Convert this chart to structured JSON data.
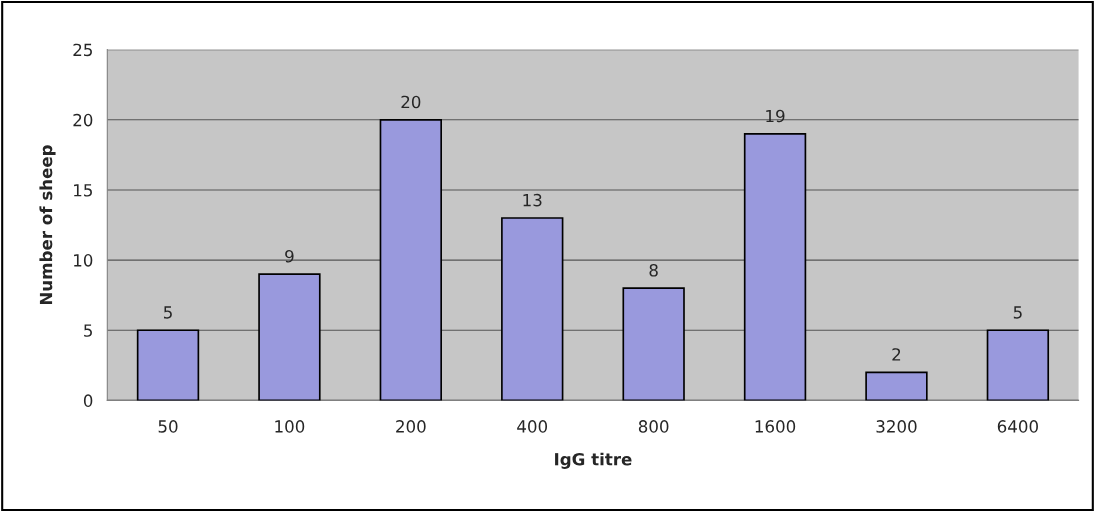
{
  "chart_data": {
    "type": "bar",
    "xlabel": "IgG titre",
    "ylabel": "Number of sheep",
    "categories": [
      "50",
      "100",
      "200",
      "400",
      "800",
      "1600",
      "3200",
      "6400"
    ],
    "values": [
      5,
      9,
      20,
      13,
      8,
      19,
      2,
      5
    ],
    "color": "#9999dd",
    "ylim": [
      0,
      25
    ],
    "yticks": [
      0,
      5,
      10,
      15,
      20,
      25
    ],
    "grid": "y",
    "data_labels": true
  }
}
